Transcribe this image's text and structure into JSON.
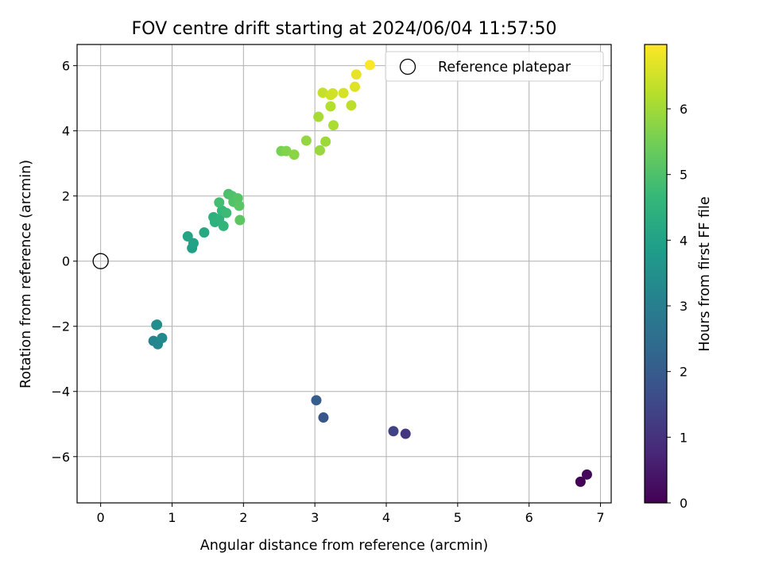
{
  "chart_data": {
    "type": "scatter",
    "title": "FOV centre drift starting at 2024/06/04 11:57:50",
    "xlabel": "Angular distance from reference (arcmin)",
    "ylabel": "Rotation from reference (arcmin)",
    "xlim": [
      -0.33,
      7.15
    ],
    "ylim": [
      -7.42,
      6.65
    ],
    "xticks": [
      0,
      1,
      2,
      3,
      4,
      5,
      6,
      7
    ],
    "yticks": [
      -6,
      -4,
      -2,
      0,
      2,
      4,
      6
    ],
    "grid": true,
    "legend_position": "top-right",
    "colormap": "viridis",
    "colorbar": {
      "label": "Hours from first FF file",
      "range": [
        0,
        6.98
      ],
      "ticks": [
        0,
        1,
        2,
        3,
        4,
        5,
        6
      ]
    },
    "reference": {
      "label": "Reference platepar",
      "x": 0,
      "y": 0
    },
    "points": [
      {
        "x": 6.72,
        "y": -6.77,
        "hours": 0.05
      },
      {
        "x": 6.81,
        "y": -6.55,
        "hours": 0.15
      },
      {
        "x": 4.27,
        "y": -5.3,
        "hours": 1.15
      },
      {
        "x": 4.1,
        "y": -5.22,
        "hours": 1.35
      },
      {
        "x": 3.12,
        "y": -4.8,
        "hours": 1.85
      },
      {
        "x": 3.02,
        "y": -4.27,
        "hours": 2.05
      },
      {
        "x": 0.74,
        "y": -2.45,
        "hours": 3.15
      },
      {
        "x": 0.8,
        "y": -2.55,
        "hours": 3.2
      },
      {
        "x": 0.86,
        "y": -2.36,
        "hours": 3.3
      },
      {
        "x": 0.78,
        "y": -1.96,
        "hours": 3.35
      },
      {
        "x": 0.79,
        "y": -1.95,
        "hours": 3.38
      },
      {
        "x": 1.28,
        "y": 0.4,
        "hours": 3.95
      },
      {
        "x": 1.3,
        "y": 0.55,
        "hours": 4.0
      },
      {
        "x": 1.22,
        "y": 0.76,
        "hours": 4.05
      },
      {
        "x": 1.45,
        "y": 0.88,
        "hours": 4.2
      },
      {
        "x": 1.58,
        "y": 1.35,
        "hours": 4.4
      },
      {
        "x": 1.6,
        "y": 1.2,
        "hours": 4.45
      },
      {
        "x": 1.66,
        "y": 1.3,
        "hours": 4.5
      },
      {
        "x": 1.72,
        "y": 1.08,
        "hours": 4.55
      },
      {
        "x": 1.7,
        "y": 1.55,
        "hours": 4.65
      },
      {
        "x": 1.76,
        "y": 1.48,
        "hours": 4.75
      },
      {
        "x": 1.66,
        "y": 1.8,
        "hours": 4.85
      },
      {
        "x": 1.79,
        "y": 2.06,
        "hours": 4.95
      },
      {
        "x": 1.84,
        "y": 2.0,
        "hours": 5.0
      },
      {
        "x": 1.86,
        "y": 1.82,
        "hours": 5.05
      },
      {
        "x": 1.92,
        "y": 1.93,
        "hours": 5.1
      },
      {
        "x": 1.94,
        "y": 1.7,
        "hours": 5.15
      },
      {
        "x": 1.95,
        "y": 1.26,
        "hours": 5.2
      },
      {
        "x": 2.53,
        "y": 3.38,
        "hours": 5.55
      },
      {
        "x": 2.6,
        "y": 3.38,
        "hours": 5.65
      },
      {
        "x": 2.71,
        "y": 3.27,
        "hours": 5.75
      },
      {
        "x": 2.88,
        "y": 3.7,
        "hours": 5.85
      },
      {
        "x": 3.07,
        "y": 3.4,
        "hours": 5.9
      },
      {
        "x": 3.15,
        "y": 3.67,
        "hours": 5.95
      },
      {
        "x": 3.05,
        "y": 4.43,
        "hours": 6.05
      },
      {
        "x": 3.26,
        "y": 4.17,
        "hours": 6.1
      },
      {
        "x": 3.22,
        "y": 4.75,
        "hours": 6.2
      },
      {
        "x": 3.51,
        "y": 4.78,
        "hours": 6.3
      },
      {
        "x": 3.11,
        "y": 5.17,
        "hours": 6.4
      },
      {
        "x": 3.22,
        "y": 5.1,
        "hours": 6.45
      },
      {
        "x": 3.25,
        "y": 5.15,
        "hours": 6.5
      },
      {
        "x": 3.4,
        "y": 5.16,
        "hours": 6.55
      },
      {
        "x": 3.56,
        "y": 5.35,
        "hours": 6.65
      },
      {
        "x": 3.58,
        "y": 5.73,
        "hours": 6.75
      },
      {
        "x": 3.77,
        "y": 6.02,
        "hours": 6.95
      }
    ]
  }
}
